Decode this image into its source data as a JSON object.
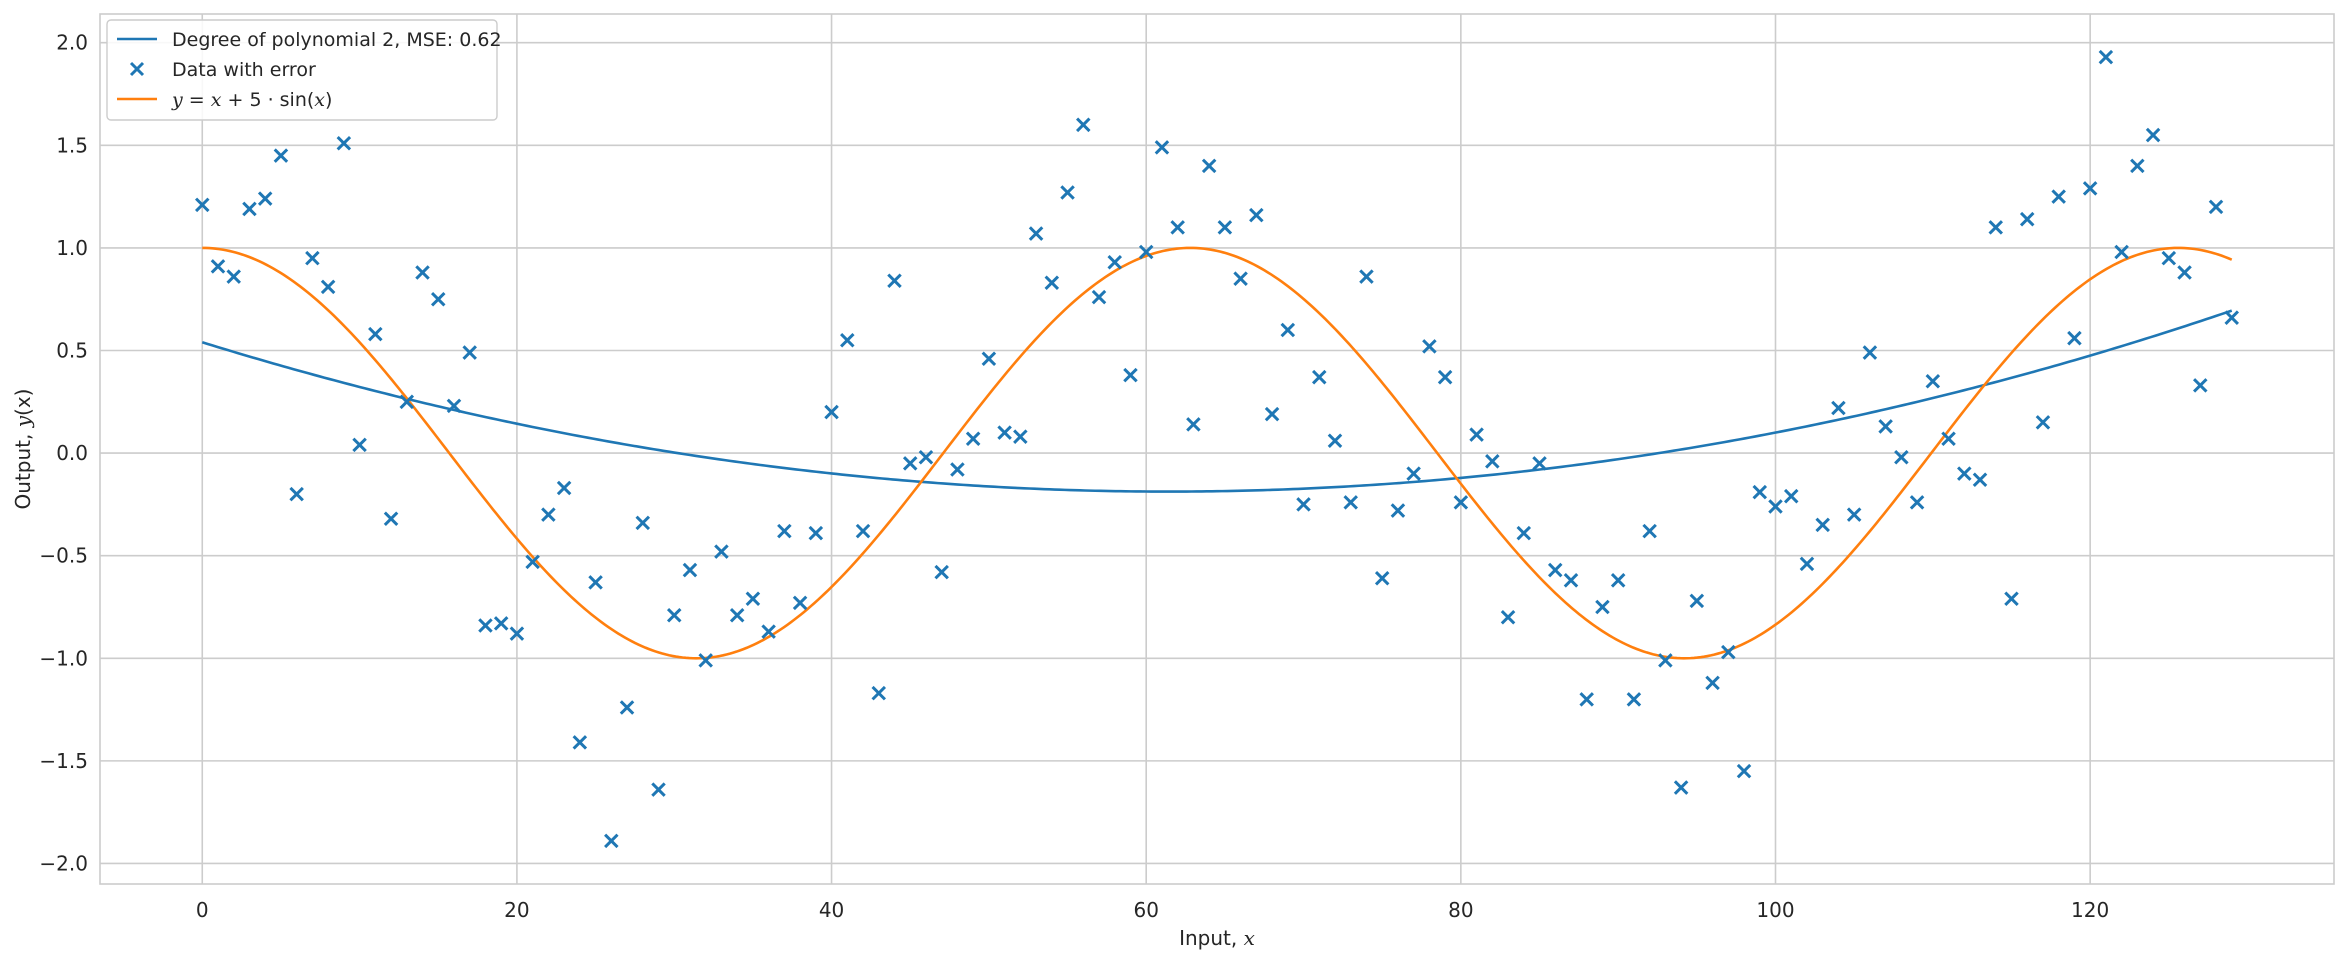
{
  "chart_data": {
    "type": "line+scatter",
    "xlabel_prefix": "Input, ",
    "xlabel_var": "x",
    "ylabel_prefix": "Output, ",
    "ylabel_var": "y",
    "ylabel_arg": "(x)",
    "xlim": [
      -6.5,
      135.5
    ],
    "ylim": [
      -2.1,
      2.14
    ],
    "xticks": [
      0,
      20,
      40,
      60,
      80,
      100,
      120
    ],
    "yticks": [
      -2.0,
      -1.5,
      -1.0,
      -0.5,
      0.0,
      0.5,
      1.0,
      1.5,
      2.0
    ],
    "grid": true,
    "legend_position": "top-left",
    "legend": {
      "poly": " Degree of polynomial 2, MSE: 0.62",
      "scatter": "Data with error",
      "truth_y": "y",
      "truth_eq": " = ",
      "truth_x": "x",
      "truth_plus": " + 5 · sin(",
      "truth_x2": "x",
      "truth_close": ")"
    },
    "colors": {
      "poly": "#1f77b4",
      "scatter": "#1f77b4",
      "truth": "#ff7f0e"
    },
    "truth_model": {
      "amplitude": 1.0,
      "period": 62.8,
      "x_start": 0,
      "x_end": 129
    },
    "polynomial_fit": {
      "coefficients": [
        0.54,
        -0.0237,
        0.000193
      ],
      "x_start": 0,
      "x_end": 129
    },
    "scatter": {
      "x": [
        0,
        1,
        2,
        3,
        4,
        5,
        6,
        7,
        8,
        9,
        10,
        11,
        12,
        13,
        14,
        15,
        16,
        17,
        18,
        19,
        20,
        21,
        22,
        23,
        24,
        25,
        26,
        27,
        28,
        29,
        30,
        31,
        32,
        33,
        34,
        35,
        36,
        37,
        38,
        39,
        40,
        41,
        42,
        43,
        44,
        45,
        46,
        47,
        48,
        49,
        50,
        51,
        52,
        53,
        54,
        55,
        56,
        57,
        58,
        59,
        60,
        61,
        62,
        63,
        64,
        65,
        66,
        67,
        68,
        69,
        70,
        71,
        72,
        73,
        74,
        75,
        76,
        77,
        78,
        79,
        80,
        81,
        82,
        83,
        84,
        85,
        86,
        87,
        88,
        89,
        90,
        91,
        92,
        93,
        94,
        95,
        96,
        97,
        98,
        99,
        100,
        101,
        102,
        103,
        104,
        105,
        106,
        107,
        108,
        109,
        110,
        111,
        112,
        113,
        114,
        115,
        116,
        117,
        118,
        119,
        120,
        121,
        122,
        123,
        124,
        125,
        126,
        127,
        128,
        129
      ],
      "y": [
        1.21,
        0.91,
        0.86,
        1.19,
        1.24,
        1.45,
        -0.2,
        0.95,
        0.81,
        1.51,
        0.04,
        0.58,
        -0.32,
        0.25,
        0.88,
        0.75,
        0.23,
        0.49,
        -0.84,
        -0.83,
        -0.88,
        -0.53,
        -0.3,
        -0.17,
        -1.41,
        -0.63,
        -1.89,
        -1.24,
        -0.34,
        -1.64,
        -0.79,
        -0.57,
        -1.01,
        -0.48,
        -0.79,
        -0.71,
        -0.87,
        -0.38,
        -0.73,
        -0.39,
        0.2,
        0.55,
        -0.38,
        -1.17,
        0.84,
        -0.05,
        -0.02,
        -0.58,
        -0.08,
        0.07,
        0.46,
        0.1,
        0.08,
        1.07,
        0.83,
        1.27,
        1.6,
        0.76,
        0.93,
        0.38,
        0.98,
        1.49,
        1.1,
        0.14,
        1.4,
        1.1,
        0.85,
        1.16,
        0.19,
        0.6,
        -0.25,
        0.37,
        0.06,
        -0.24,
        0.86,
        -0.61,
        -0.28,
        -0.1,
        0.52,
        0.37,
        -0.24,
        0.09,
        -0.04,
        -0.8,
        -0.39,
        -0.05,
        -0.57,
        -0.62,
        -1.2,
        -0.75,
        -0.62,
        -1.2,
        -0.38,
        -1.01,
        -1.63,
        -0.72,
        -1.12,
        -0.97,
        -1.55,
        -0.19,
        -0.26,
        -0.21,
        -0.54,
        -0.35,
        0.22,
        -0.3,
        0.49,
        0.13,
        -0.02,
        -0.24,
        0.35,
        0.07,
        -0.1,
        -0.13,
        1.1,
        -0.71,
        1.14,
        0.15,
        1.25,
        0.56,
        1.29,
        1.93,
        0.98,
        1.4,
        1.55,
        0.95,
        0.88,
        0.33,
        1.2,
        0.66
      ]
    }
  }
}
